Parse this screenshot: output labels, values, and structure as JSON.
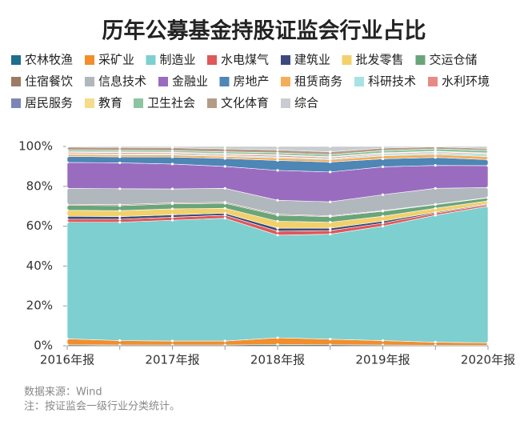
{
  "chart_data": {
    "type": "stacked_area",
    "title": "历年公募基金持股证监会行业占比",
    "categories": [
      "2016年报",
      null,
      "2017年报",
      null,
      "2018年报",
      null,
      "2019年报",
      null,
      "2020年报"
    ],
    "ylim": [
      0,
      100
    ],
    "yticks": [
      {
        "value": 0,
        "label": "0%"
      },
      {
        "value": 20,
        "label": "20%"
      },
      {
        "value": 40,
        "label": "40%"
      },
      {
        "value": 60,
        "label": "60%"
      },
      {
        "value": 80,
        "label": "80%"
      },
      {
        "value": 100,
        "label": "100%"
      }
    ],
    "series": [
      {
        "name": "农林牧渔",
        "color": "#1f6e8c",
        "values": [
          0.5,
          0.4,
          0.4,
          0.4,
          0.6,
          0.5,
          0.4,
          0.3,
          0.3
        ]
      },
      {
        "name": "采矿业",
        "color": "#f28e2b",
        "values": [
          3.0,
          2.2,
          2.0,
          2.0,
          3.4,
          2.8,
          2.2,
          1.5,
          1.2
        ]
      },
      {
        "name": "制造业",
        "color": "#7ecfcf",
        "values": [
          58.5,
          59.4,
          60.6,
          61.6,
          51.5,
          52.7,
          57.4,
          63.7,
          68.5
        ]
      },
      {
        "name": "水电煤气",
        "color": "#e15759",
        "values": [
          1.5,
          1.5,
          1.5,
          1.5,
          2.0,
          1.8,
          1.5,
          1.0,
          0.8
        ]
      },
      {
        "name": "建筑业",
        "color": "#3b4a7a",
        "values": [
          1.5,
          1.3,
          1.2,
          1.0,
          1.5,
          1.2,
          1.0,
          0.5,
          0.4
        ]
      },
      {
        "name": "批发零售",
        "color": "#f2d06b",
        "values": [
          3.0,
          3.0,
          3.0,
          2.5,
          3.5,
          3.0,
          2.5,
          2.0,
          1.5
        ]
      },
      {
        "name": "交运仓储",
        "color": "#6aa57a",
        "values": [
          2.5,
          2.5,
          2.5,
          2.5,
          3.0,
          2.8,
          2.5,
          1.8,
          1.5
        ]
      },
      {
        "name": "住宿餐饮",
        "color": "#9b7b65",
        "values": [
          0.5,
          0.5,
          0.5,
          0.5,
          0.5,
          0.4,
          0.3,
          0.2,
          0.2
        ]
      },
      {
        "name": "信息技术",
        "color": "#b0b7bd",
        "values": [
          8,
          8,
          7,
          7,
          7,
          7,
          8,
          8,
          5
        ]
      },
      {
        "name": "金融业",
        "color": "#9a6cc0",
        "values": [
          13,
          13,
          12.5,
          11,
          15,
          15,
          14,
          11.5,
          11
        ]
      },
      {
        "name": "房地产",
        "color": "#4e86b5",
        "values": [
          3,
          3,
          3.5,
          4,
          5,
          5,
          4,
          4,
          3
        ]
      },
      {
        "name": "租赁商务",
        "color": "#f5ad5b",
        "values": [
          1,
          1,
          1,
          1,
          1.2,
          1.2,
          1.5,
          1.5,
          1.5
        ]
      },
      {
        "name": "科研技术",
        "color": "#a7e3e3",
        "values": [
          0.5,
          0.5,
          0.5,
          0.5,
          0.6,
          0.6,
          0.7,
          0.8,
          1
        ]
      },
      {
        "name": "水利环境",
        "color": "#e88a84",
        "values": [
          0.6,
          0.6,
          0.6,
          0.6,
          0.7,
          0.6,
          0.5,
          0.5,
          0.5
        ]
      },
      {
        "name": "居民服务",
        "color": "#7b86b8",
        "values": [
          0.1,
          0.1,
          0.1,
          0.1,
          0.1,
          0.1,
          0.1,
          0.1,
          0.1
        ]
      },
      {
        "name": "教育",
        "color": "#f4dc8a",
        "values": [
          0.2,
          0.2,
          0.2,
          0.2,
          0.2,
          0.2,
          0.2,
          0.2,
          0.2
        ]
      },
      {
        "name": "卫生社会",
        "color": "#8cc5a0",
        "values": [
          0.8,
          0.8,
          0.8,
          0.9,
          1.0,
          1.0,
          1.1,
          1.2,
          1.3
        ]
      },
      {
        "name": "文化体育",
        "color": "#b39c86",
        "values": [
          1.5,
          1.5,
          1.5,
          1.5,
          1.5,
          1.4,
          1.3,
          1.0,
          1.0
        ]
      },
      {
        "name": "综合",
        "color": "#c8ccd0",
        "values": [
          0.3,
          0.5,
          0.6,
          1.2,
          1.7,
          2.7,
          0.8,
          0.2,
          1.0
        ]
      }
    ],
    "notes": [
      "数据来源：Wind",
      "注：按证监会一级行业分类统计。"
    ]
  }
}
